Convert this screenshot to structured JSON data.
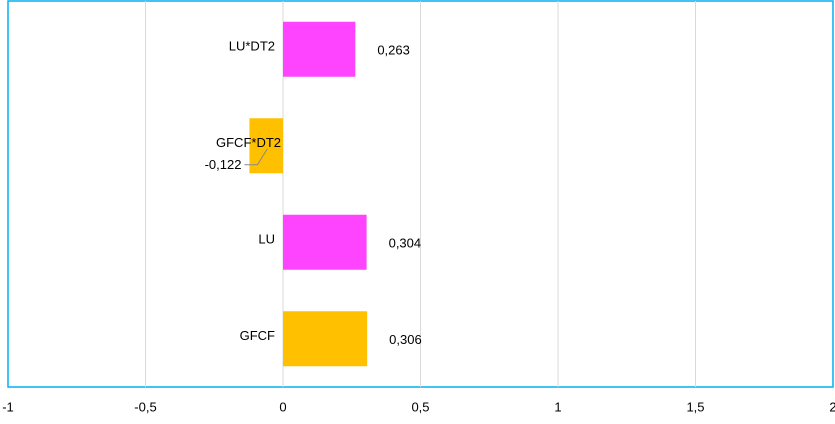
{
  "chart_data": {
    "type": "bar",
    "orientation": "horizontal",
    "categories": [
      "LU*DT2",
      "GFCF*DT2",
      "LU",
      "GFCF"
    ],
    "values": [
      0.263,
      -0.122,
      0.304,
      0.306
    ],
    "value_labels": [
      "0,263",
      "-0,122",
      "0,304",
      "0,306"
    ],
    "colors": [
      "#ff44ff",
      "#ffc000",
      "#ff44ff",
      "#ffc000"
    ],
    "label_colors": [
      "#000000",
      "#ff0000",
      "#000000",
      "#000000"
    ],
    "xlim": [
      -1,
      2
    ],
    "xticks": [
      -1,
      {
        "value": -0.5,
        "label": "-0,5"
      },
      0,
      {
        "value": 0.5,
        "label": "0,5"
      },
      1,
      {
        "value": 1.5,
        "label": "1,5"
      },
      2
    ],
    "grid": true
  }
}
